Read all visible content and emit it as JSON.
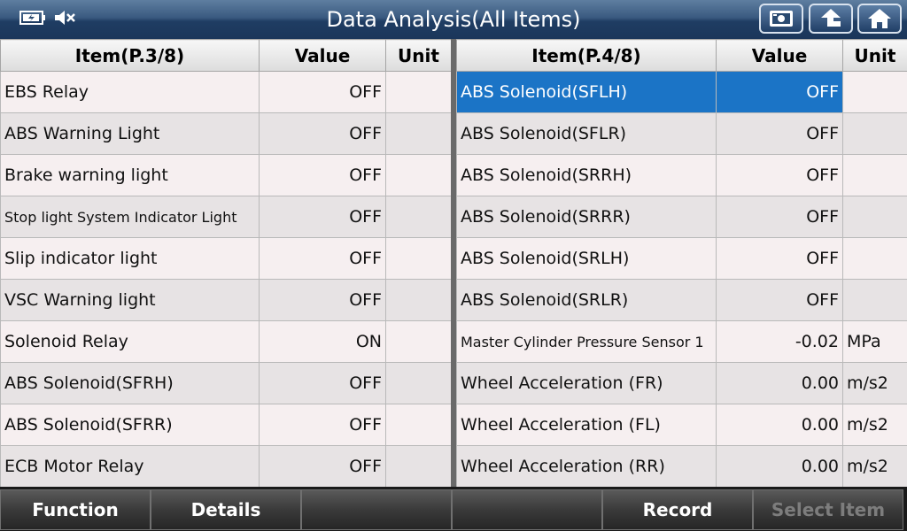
{
  "title": "Data Analysis(All Items)",
  "icons": {
    "battery": "battery-icon",
    "mute": "mute-icon",
    "screenshot": "screenshot-icon",
    "up": "up-arrow-icon",
    "home": "home-icon"
  },
  "left": {
    "headers": [
      "Item(P.3/8)",
      "Value",
      "Unit"
    ],
    "rows": [
      {
        "item": "EBS Relay",
        "value": "OFF",
        "unit": ""
      },
      {
        "item": "ABS Warning Light",
        "value": "OFF",
        "unit": ""
      },
      {
        "item": "Brake warning light",
        "value": "OFF",
        "unit": ""
      },
      {
        "item": "Stop light System Indicator Light",
        "value": "OFF",
        "unit": ""
      },
      {
        "item": "Slip indicator light",
        "value": "OFF",
        "unit": ""
      },
      {
        "item": "VSC Warning light",
        "value": "OFF",
        "unit": ""
      },
      {
        "item": "Solenoid Relay",
        "value": "ON",
        "unit": ""
      },
      {
        "item": "ABS Solenoid(SFRH)",
        "value": "OFF",
        "unit": ""
      },
      {
        "item": "ABS Solenoid(SFRR)",
        "value": "OFF",
        "unit": ""
      },
      {
        "item": "ECB Motor Relay",
        "value": "OFF",
        "unit": ""
      }
    ]
  },
  "right": {
    "headers": [
      "Item(P.4/8)",
      "Value",
      "Unit"
    ],
    "rows": [
      {
        "item": "ABS Solenoid(SFLH)",
        "value": "OFF",
        "unit": ""
      },
      {
        "item": "ABS Solenoid(SFLR)",
        "value": "OFF",
        "unit": ""
      },
      {
        "item": "ABS Solenoid(SRRH)",
        "value": "OFF",
        "unit": ""
      },
      {
        "item": "ABS Solenoid(SRRR)",
        "value": "OFF",
        "unit": ""
      },
      {
        "item": "ABS Solenoid(SRLH)",
        "value": "OFF",
        "unit": ""
      },
      {
        "item": "ABS Solenoid(SRLR)",
        "value": "OFF",
        "unit": ""
      },
      {
        "item": "Master Cylinder Pressure Sensor 1",
        "value": "-0.02",
        "unit": "MPa"
      },
      {
        "item": "Wheel Acceleration (FR)",
        "value": "0.00",
        "unit": "m/s2"
      },
      {
        "item": "Wheel Acceleration (FL)",
        "value": "0.00",
        "unit": "m/s2"
      },
      {
        "item": "Wheel Acceleration (RR)",
        "value": "0.00",
        "unit": "m/s2"
      }
    ]
  },
  "bottom": {
    "function": "Function",
    "details": "Details",
    "blank1": "",
    "blank2": "",
    "record": "Record",
    "select_item": "Select Item"
  },
  "colors": {
    "selection": "#1b74c6",
    "title_bar": "#2a4a70"
  }
}
